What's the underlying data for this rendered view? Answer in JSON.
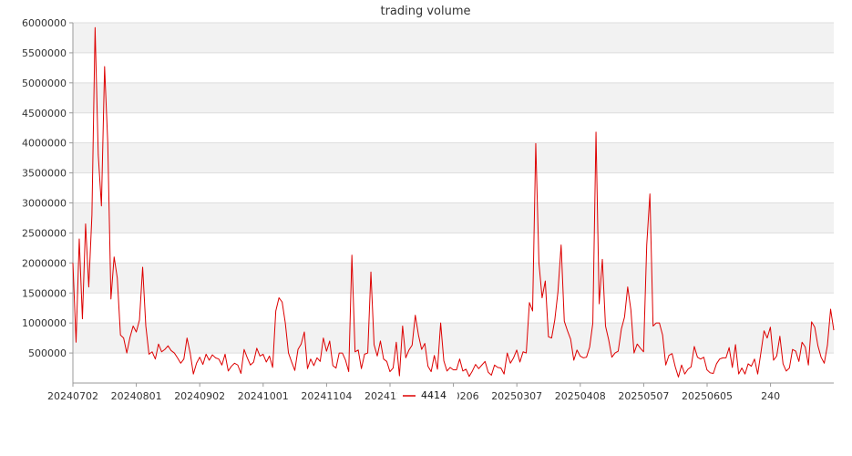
{
  "chart_data": {
    "type": "line",
    "title": "trading volume",
    "xlabel": "",
    "ylabel": "",
    "ylim": [
      0,
      6000000
    ],
    "yticks": [
      500000,
      1000000,
      1500000,
      2000000,
      2500000,
      3000000,
      3500000,
      4000000,
      4500000,
      5000000,
      5500000,
      6000000
    ],
    "yticklabels": [
      "500000",
      "1000000",
      "1500000",
      "2000000",
      "2500000",
      "3000000",
      "3500000",
      "4000000",
      "4500000",
      "5000000",
      "5500000",
      "6000000"
    ],
    "xticklabels": [
      "20240702",
      "20240801",
      "20240902",
      "20241001",
      "20241104",
      "20241230",
      "20250206",
      "20250307",
      "20250408",
      "20250507",
      "20250605",
      "240"
    ],
    "grid": "horizontal banded",
    "legend": "bottom-center",
    "line_color": "#dd0000",
    "series": [
      {
        "name": "4414",
        "values": [
          2000000,
          680000,
          2400000,
          1070000,
          2650000,
          1600000,
          2800000,
          5920000,
          3800000,
          2950000,
          5270000,
          4000000,
          1400000,
          2100000,
          1750000,
          800000,
          750000,
          500000,
          760000,
          950000,
          850000,
          1050000,
          1930000,
          950000,
          480000,
          520000,
          400000,
          650000,
          520000,
          560000,
          620000,
          540000,
          500000,
          420000,
          330000,
          400000,
          750000,
          500000,
          150000,
          330000,
          430000,
          310000,
          480000,
          380000,
          470000,
          420000,
          400000,
          300000,
          480000,
          200000,
          280000,
          330000,
          300000,
          160000,
          560000,
          420000,
          300000,
          350000,
          580000,
          450000,
          480000,
          350000,
          450000,
          260000,
          1200000,
          1420000,
          1350000,
          1000000,
          500000,
          350000,
          210000,
          560000,
          650000,
          850000,
          240000,
          400000,
          290000,
          420000,
          360000,
          750000,
          530000,
          700000,
          290000,
          250000,
          500000,
          500000,
          380000,
          190000,
          2130000,
          520000,
          550000,
          240000,
          480000,
          500000,
          1850000,
          640000,
          450000,
          700000,
          400000,
          360000,
          190000,
          250000,
          680000,
          120000,
          950000,
          420000,
          550000,
          630000,
          1130000,
          800000,
          560000,
          660000,
          280000,
          190000,
          460000,
          230000,
          1000000,
          370000,
          200000,
          260000,
          220000,
          220000,
          400000,
          200000,
          230000,
          110000,
          200000,
          310000,
          240000,
          300000,
          360000,
          180000,
          130000,
          300000,
          260000,
          250000,
          150000,
          500000,
          330000,
          420000,
          550000,
          350000,
          520000,
          500000,
          1340000,
          1200000,
          3990000,
          2000000,
          1420000,
          1700000,
          770000,
          750000,
          1050000,
          1520000,
          2300000,
          1030000,
          870000,
          730000,
          380000,
          550000,
          450000,
          420000,
          430000,
          600000,
          1000000,
          4180000,
          1320000,
          2060000,
          950000,
          720000,
          430000,
          500000,
          530000,
          900000,
          1100000,
          1600000,
          1220000,
          500000,
          650000,
          580000,
          520000,
          2300000,
          3150000,
          950000,
          1000000,
          1000000,
          800000,
          300000,
          460000,
          490000,
          270000,
          100000,
          300000,
          150000,
          230000,
          270000,
          610000,
          430000,
          400000,
          430000,
          220000,
          170000,
          160000,
          320000,
          400000,
          420000,
          420000,
          590000,
          260000,
          640000,
          150000,
          250000,
          150000,
          320000,
          280000,
          400000,
          150000,
          500000,
          870000,
          750000,
          930000,
          380000,
          450000,
          780000,
          320000,
          200000,
          250000,
          560000,
          530000,
          360000,
          680000,
          600000,
          300000,
          1020000,
          930000,
          620000,
          430000,
          330000,
          630000,
          1230000,
          880000
        ]
      }
    ]
  }
}
